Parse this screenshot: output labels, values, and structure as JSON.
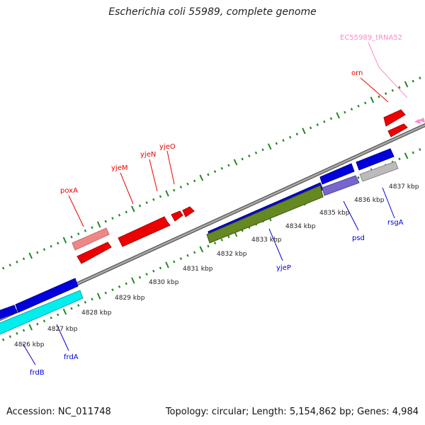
{
  "title": "Escherichia coli 55989, complete genome",
  "footer": {
    "accession_label": "Accession:",
    "accession": "NC_011748",
    "topology_label": "Topology:",
    "topology": "circular",
    "length_label": "Length:",
    "length": "5,154,862 bp",
    "genes_label": "Genes:",
    "genes": "4,984"
  },
  "colors": {
    "forward_gene": "#ee0000",
    "forward_gene_light": "#ee8888",
    "trna": "#ff88cc",
    "reverse_gene": "#0000dd",
    "reverse_gene_light": "#7766cc",
    "cyan_gene": "#00eeee",
    "olive_gene": "#668822",
    "gray_gene": "#bbbbbb",
    "backbone": "#888888",
    "tick": "#228822"
  },
  "kbp_labels": [
    "4826 kbp",
    "4827 kbp",
    "4828 kbp",
    "4829 kbp",
    "4830 kbp",
    "4831 kbp",
    "4832 kbp",
    "4833 kbp",
    "4834 kbp",
    "4835 kbp",
    "4836 kbp",
    "4837 kbp"
  ],
  "gene_labels": {
    "poxA": "poxA",
    "yjeM": "yjeM",
    "yjeN": "yjeN",
    "yjeO": "yjeO",
    "orn": "orn",
    "trna": "EC55989_tRNA52",
    "yjeP": "yjeP",
    "psd": "psd",
    "rsgA": "rsgA",
    "frdA": "frdA",
    "frdB": "frdB"
  }
}
